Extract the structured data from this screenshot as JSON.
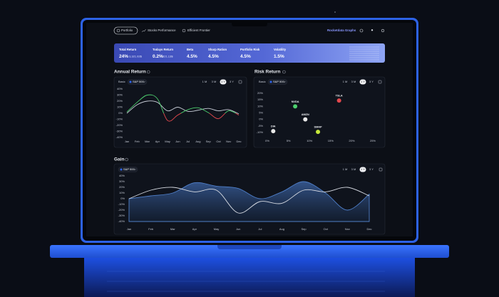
{
  "nav": {
    "tabs": [
      "Portfolio",
      "Stocks Performance",
      "Efficient Frontier"
    ],
    "brand": "Rocketdata Graphs"
  },
  "stats": [
    {
      "label": "Total Return",
      "value": "24%",
      "amount": "3,321.02$"
    },
    {
      "label": "Todays Return",
      "value": "0.2%",
      "amount": "221.13$"
    },
    {
      "label": "Beta",
      "value": "4.5%"
    },
    {
      "label": "Sharp Ration",
      "value": "4.5%"
    },
    {
      "label": "Portfolio Risk",
      "value": "4.5%"
    },
    {
      "label": "Volatility",
      "value": "1.5%"
    }
  ],
  "chart_data": [
    {
      "type": "line",
      "title": "Annual Return",
      "controls": {
        "basis": "Basic",
        "index": "S&P 500",
        "ranges": [
          "1 M",
          "3 M",
          "1 Y",
          "3 Y"
        ],
        "selected_range": "1 Y"
      },
      "categories": [
        "Jan",
        "Feb",
        "Mar",
        "Apr",
        "May",
        "Jun",
        "Jul",
        "Aug",
        "Sep",
        "Oct",
        "Nov",
        "Dec"
      ],
      "series": [
        {
          "color": "#c9ced8",
          "values": [
            0,
            14,
            20,
            18,
            4,
            10,
            3,
            5,
            8,
            4,
            6,
            -1
          ]
        },
        {
          "color": "#4ccf6e",
          "negative_color": "#e5484d",
          "values": [
            2,
            18,
            30,
            24,
            -12,
            -3,
            6,
            9,
            1,
            -9,
            4,
            -3
          ]
        }
      ],
      "ylim": [
        -40,
        40
      ],
      "yticks": [
        {
          "value": 40,
          "label": "40%"
        },
        {
          "value": 30,
          "label": "30%"
        },
        {
          "value": 20,
          "label": "20%"
        },
        {
          "value": 10,
          "label": "10%"
        },
        {
          "value": 0,
          "label": "0%"
        },
        {
          "value": -10,
          "label": "-10%"
        },
        {
          "value": -20,
          "label": "-20%"
        },
        {
          "value": -30,
          "label": "-30%"
        },
        {
          "value": -40,
          "label": "-40%"
        }
      ],
      "grid": false
    },
    {
      "type": "scatter",
      "title": "Risk Return",
      "controls": {
        "basis": "Basic",
        "index": "S&P 500",
        "ranges": [
          "1 M",
          "3 M",
          "1 Y",
          "3 Y"
        ],
        "selected_range": "1 Y"
      },
      "labels": [
        "TSLA",
        "NVDA",
        "AMZN",
        "SMAP",
        "DIA"
      ],
      "colors": [
        "#e5484d",
        "#4ccf6e",
        "#e8e8e8",
        "#c6e83a",
        "#e8e8e8"
      ],
      "x": [
        17,
        6.6,
        9,
        12,
        1.4
      ],
      "values": [
        14.5,
        10,
        0,
        -9.5,
        -9
      ],
      "xlim": [
        0,
        25
      ],
      "xticks": [
        {
          "value": 0,
          "label": "0%"
        },
        {
          "value": 5,
          "label": "5%"
        },
        {
          "value": 10,
          "label": "10%"
        },
        {
          "value": 15,
          "label": "15%"
        },
        {
          "value": 20,
          "label": "20%"
        },
        {
          "value": 25,
          "label": "25%"
        }
      ],
      "ylim": [
        -10,
        20
      ],
      "yticks": [
        {
          "value": 20,
          "label": "20%"
        },
        {
          "value": 15,
          "label": "15%"
        },
        {
          "value": 10,
          "label": "10%"
        },
        {
          "value": 5,
          "label": "5%"
        },
        {
          "value": 0,
          "label": "0%"
        },
        {
          "value": -5,
          "label": "-5%"
        },
        {
          "value": -10,
          "label": "-10%"
        }
      ],
      "grid": false
    },
    {
      "type": "line",
      "title": "Gain",
      "controls": {
        "index": "S&P 500",
        "ranges": [
          "1 M",
          "3 M",
          "1 Y",
          "3 Y"
        ],
        "selected_range": "1 Y"
      },
      "categories": [
        "Jan",
        "Feb",
        "Mar",
        "Apr",
        "May",
        "Jun",
        "Jul",
        "Aug",
        "Sep",
        "Oct",
        "Nov",
        "Dec"
      ],
      "series": [
        {
          "color": "#4f7fc9",
          "area": true,
          "values": [
            0,
            5,
            10,
            28,
            22,
            18,
            0,
            12,
            30,
            10,
            -20,
            8
          ]
        },
        {
          "color": "#d6dae2",
          "values": [
            0,
            15,
            20,
            12,
            15,
            -25,
            -5,
            -8,
            15,
            12,
            20,
            5
          ]
        }
      ],
      "ylim": [
        -40,
        40
      ],
      "yticks": [
        {
          "value": 40,
          "label": "40%"
        },
        {
          "value": 30,
          "label": "30%"
        },
        {
          "value": 20,
          "label": "20%"
        },
        {
          "value": 10,
          "label": "10%"
        },
        {
          "value": 0,
          "label": "0%"
        },
        {
          "value": -10,
          "label": "-10%"
        },
        {
          "value": -20,
          "label": "-20%"
        },
        {
          "value": -30,
          "label": "-30%"
        },
        {
          "value": -40,
          "label": "-40%"
        }
      ],
      "grid": false
    }
  ]
}
